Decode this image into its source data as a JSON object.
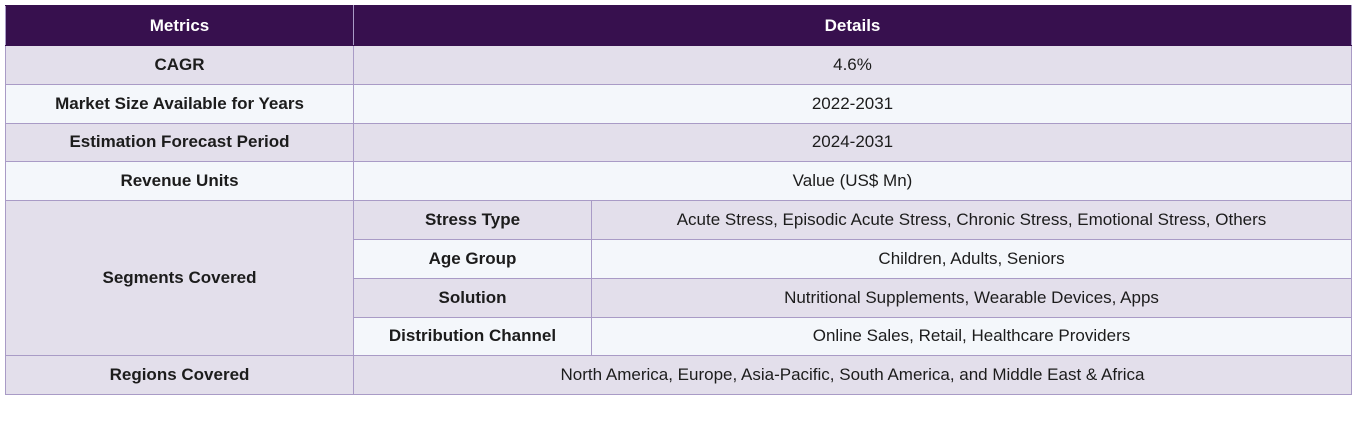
{
  "header": {
    "metrics": "Metrics",
    "details": "Details"
  },
  "rows": {
    "cagr": {
      "label": "CAGR",
      "value": "4.6%"
    },
    "market_size": {
      "label": "Market Size Available for Years",
      "value": "2022-2031"
    },
    "forecast": {
      "label": "Estimation Forecast Period",
      "value": "2024-2031"
    },
    "revenue": {
      "label": "Revenue Units",
      "value": "Value (US$ Mn)"
    },
    "segments": {
      "label": "Segments Covered",
      "items": [
        {
          "name": "Stress Type",
          "value": "Acute Stress, Episodic Acute Stress, Chronic Stress, Emotional Stress, Others"
        },
        {
          "name": "Age Group",
          "value": "Children, Adults, Seniors"
        },
        {
          "name": "Solution",
          "value": "Nutritional Supplements, Wearable Devices, Apps"
        },
        {
          "name": "Distribution Channel",
          "value": "Online Sales, Retail, Healthcare Providers"
        }
      ]
    },
    "regions": {
      "label": "Regions Covered",
      "value": "North America, Europe, Asia-Pacific, South America, and Middle East & Africa"
    }
  },
  "colors": {
    "header_bg": "#37104e",
    "row_shade": "#e3dfeb",
    "row_plain": "#f4f7fb",
    "border": "#a99bc6"
  }
}
